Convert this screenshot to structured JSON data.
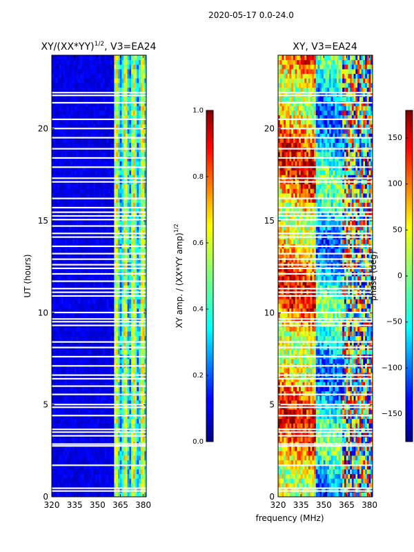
{
  "suptitle": "2020-05-17 0.0-24.0",
  "shared_xlabel": "frequency (MHz)",
  "chart_data": [
    {
      "type": "heatmap",
      "title": "XY/(XX*YY)",
      "title_sup": "1/2",
      "title_suffix": ", V3=EA24",
      "xlabel": "",
      "ylabel": "UT (hours)",
      "xlim": [
        320,
        382
      ],
      "ylim": [
        0,
        24
      ],
      "xticks": [
        320,
        335,
        350,
        365,
        380
      ],
      "yticks": [
        0,
        5,
        10,
        15,
        20
      ],
      "colormap": "jet",
      "colorbar": {
        "label": "XY amp. / (XX*YY amp)",
        "label_sup": "1/2",
        "range": [
          0.0,
          1.0
        ],
        "ticks": [
          "0.0",
          "0.2",
          "0.4",
          "0.6",
          "0.8",
          "1.0"
        ]
      },
      "description_values": {
        "low_band_level": 0.1,
        "high_band_start_mhz": 360,
        "high_band_level": 0.45
      }
    },
    {
      "type": "heatmap",
      "title": "XY, V3=EA24",
      "xlabel": "frequency (MHz)",
      "ylabel": "",
      "xlim": [
        320,
        382
      ],
      "ylim": [
        0,
        24
      ],
      "xticks": [
        320,
        335,
        350,
        365,
        380
      ],
      "yticks": [
        0,
        5,
        10,
        15,
        20
      ],
      "colormap": "jet",
      "colorbar": {
        "label": "phase (deg)",
        "range": [
          -180,
          180
        ],
        "ticks": [
          "-150",
          "-100",
          "-50",
          "0",
          "50",
          "100",
          "150"
        ]
      }
    }
  ],
  "gap_hours": [
    0.3,
    0.45,
    1.7,
    2.75,
    2.85,
    3.3,
    3.5,
    3.65,
    4.4,
    4.85,
    5.0,
    5.55,
    6.0,
    6.4,
    6.6,
    7.1,
    7.6,
    8.1,
    8.4,
    9.3,
    9.5,
    9.65,
    10.0,
    10.9,
    11.1,
    11.3,
    11.7,
    12.1,
    12.4,
    12.6,
    12.9,
    13.2,
    13.6,
    14.1,
    14.3,
    14.7,
    15.05,
    15.25,
    15.45,
    15.7,
    16.2,
    17.1,
    17.3,
    17.9,
    18.4,
    18.9,
    19.5,
    20.0,
    20.5,
    21.4,
    21.8,
    21.95
  ]
}
